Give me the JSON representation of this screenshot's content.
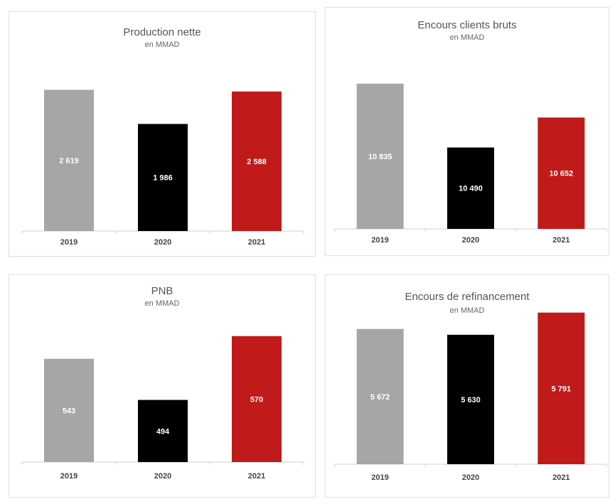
{
  "colors": {
    "2019": "#a6a6a6",
    "2020": "#000000",
    "2021": "#c01a1a",
    "axis": "#d0d0d0",
    "tick_text": "#444444"
  },
  "chart_data": [
    {
      "type": "bar",
      "title": "Production nette",
      "subtitle": "en MMAD",
      "categories": [
        "2019",
        "2020",
        "2021"
      ],
      "values": [
        2619,
        1986,
        2588
      ],
      "value_labels": [
        "2 619",
        "1 986",
        "2 588"
      ],
      "ylim": [
        0,
        2650
      ]
    },
    {
      "type": "bar",
      "title": "Encours clients bruts",
      "subtitle": "en MMAD",
      "categories": [
        "2019",
        "2020",
        "2021"
      ],
      "values": [
        10835,
        10490,
        10652
      ],
      "value_labels": [
        "10 835",
        "10 490",
        "10 652"
      ],
      "ylim": [
        10050,
        10880
      ]
    },
    {
      "type": "bar",
      "title": "PNB",
      "subtitle": "en MMAD",
      "categories": [
        "2019",
        "2020",
        "2021"
      ],
      "values": [
        543,
        494,
        570
      ],
      "value_labels": [
        "543",
        "494",
        "570"
      ],
      "ylim": [
        420,
        580
      ]
    },
    {
      "type": "bar",
      "title": "Encours de refinancement",
      "subtitle": "en MMAD",
      "categories": [
        "2019",
        "2020",
        "2021"
      ],
      "values": [
        5672,
        5630,
        5791
      ],
      "value_labels": [
        "5 672",
        "5 630",
        "5 791"
      ],
      "ylim": [
        4690,
        5800
      ]
    }
  ]
}
